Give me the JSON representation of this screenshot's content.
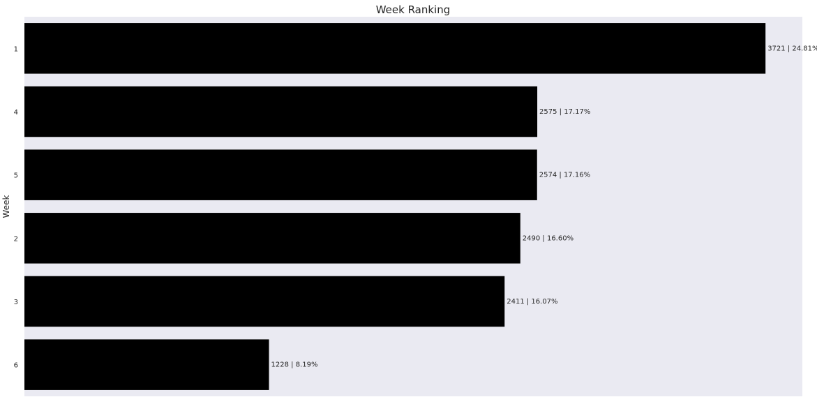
{
  "chart_data": {
    "type": "bar",
    "orientation": "horizontal",
    "title": "Week Ranking",
    "ylabel": "Week",
    "xlabel": "",
    "categories": [
      "1",
      "4",
      "5",
      "2",
      "3",
      "6"
    ],
    "values": [
      3721,
      2575,
      2574,
      2490,
      2411,
      1228
    ],
    "data_labels": [
      "3721 | 24.81%",
      "2575 | 17.17%",
      "2574 | 17.16%",
      "2490 | 16.60%",
      "2411 | 16.07%",
      "1228 | 8.19%"
    ],
    "xlim": [
      0,
      3906
    ],
    "grid": false,
    "x_ticks_visible": false,
    "legend": "none",
    "colors": {
      "bar": "#000000",
      "plot_background": "#eaeaf2",
      "page_background": "#ffffff",
      "text": "#262626"
    }
  }
}
